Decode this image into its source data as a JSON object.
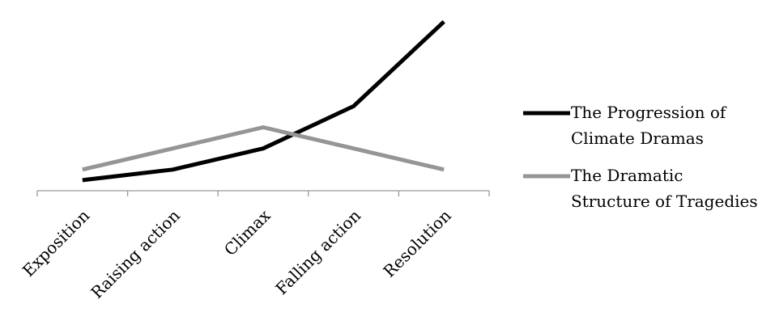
{
  "chart_data": {
    "type": "line",
    "title": "",
    "xlabel": "",
    "ylabel": "",
    "categories": [
      "Exposition",
      "Raising action",
      "Climax",
      "Falling action",
      "Resolution"
    ],
    "series": [
      {
        "name_lines": [
          "The Progression of",
          "Climate Dramas"
        ],
        "values": [
          1,
          2,
          4,
          8,
          16
        ],
        "color": "#000000"
      },
      {
        "name_lines": [
          "The Dramatic",
          "Structure of Tragedies"
        ],
        "values": [
          2,
          4,
          6,
          4,
          2
        ],
        "color": "#959595"
      }
    ],
    "ylim": [
      0,
      16.9
    ],
    "grid": false,
    "y_axis_visible": false,
    "legend_position": "right"
  }
}
